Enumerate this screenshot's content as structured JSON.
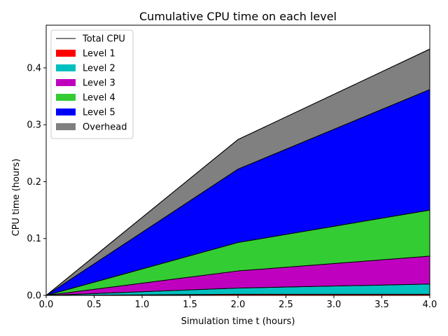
{
  "chart_data": {
    "type": "area",
    "title": "Cumulative CPU time on each level",
    "xlabel": "Simulation time t (hours)",
    "ylabel": "CPU time (hours)",
    "xlim": [
      0,
      4
    ],
    "ylim": [
      0,
      0.475
    ],
    "x_ticks": [
      "0.0",
      "0.5",
      "1.0",
      "1.5",
      "2.0",
      "2.5",
      "3.0",
      "3.5",
      "4.0"
    ],
    "y_ticks": [
      "0.0",
      "0.1",
      "0.2",
      "0.3",
      "0.4"
    ],
    "grid": false,
    "legend_position": "top-left",
    "x": [
      0,
      2,
      4
    ],
    "total": {
      "name": "Total CPU",
      "color": "#000000",
      "values": [
        0,
        0.274,
        0.433
      ]
    },
    "series": [
      {
        "name": "Level 1",
        "color": "#ff0000",
        "values": [
          0,
          0.002,
          0.002
        ]
      },
      {
        "name": "Level 2",
        "color": "#00bfbf",
        "values": [
          0,
          0.011,
          0.018
        ]
      },
      {
        "name": "Level 3",
        "color": "#bf00bf",
        "values": [
          0,
          0.03,
          0.049
        ]
      },
      {
        "name": "Level 4",
        "color": "#33cc33",
        "values": [
          0,
          0.05,
          0.081
        ]
      },
      {
        "name": "Level 5",
        "color": "#0000ff",
        "values": [
          0,
          0.129,
          0.212
        ]
      },
      {
        "name": "Overhead",
        "color": "#808080",
        "values": [
          0,
          0.052,
          0.071
        ]
      }
    ]
  }
}
